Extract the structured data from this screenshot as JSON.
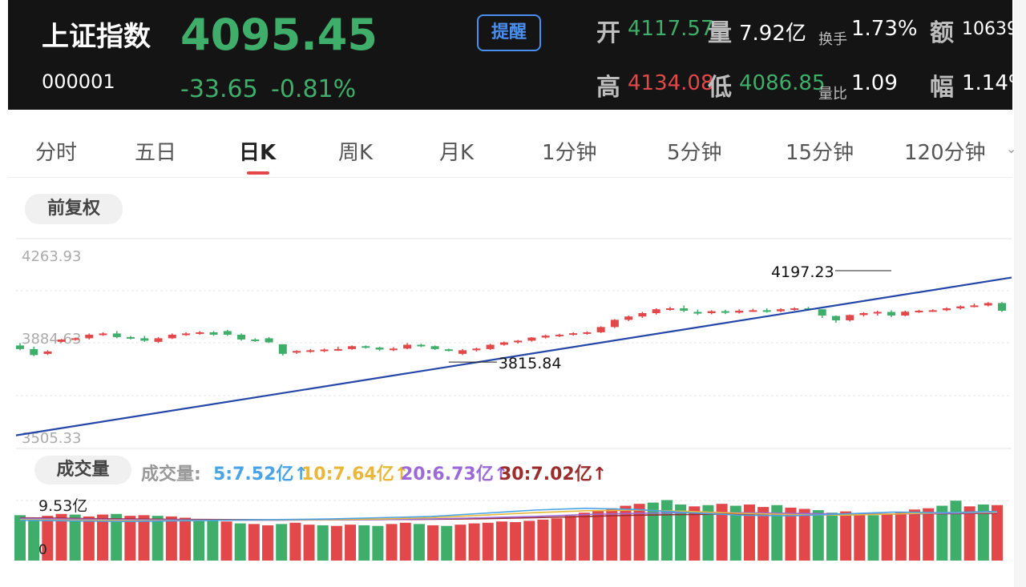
{
  "header": {
    "name": "上证指数",
    "code": "000001",
    "price": "4095.45",
    "change": "-33.65",
    "change_pct": "-0.81%",
    "alert_label": "提醒",
    "open_label": "开",
    "open": "4117.57",
    "volume_label": "量",
    "volume": "7.92亿",
    "turnover_label": "换手",
    "turnover": "1.73%",
    "amount_label": "额",
    "amount": "10639",
    "high_label": "高",
    "high": "4134.08",
    "low_label": "低",
    "low": "4086.85",
    "volratio_label": "量比",
    "volratio": "1.09",
    "amplitude_label": "幅",
    "amplitude": "1.14%"
  },
  "tabs": [
    "分时",
    "五日",
    "日K",
    "周K",
    "月K",
    "1分钟",
    "5分钟",
    "15分钟",
    "120分钟"
  ],
  "active_tab": "日K",
  "adjust_label": "前复权",
  "volume_section": {
    "button": "成交量",
    "legend_title": "成交量:",
    "ma5": "5:7.52亿↑",
    "ma10": "10:7.64亿↑",
    "ma20": "20:6.73亿↑",
    "ma30": "30:7.02亿↑",
    "max_label": "9.53亿",
    "min_label": "0"
  },
  "colors": {
    "up": "#e2474a",
    "down": "#3fae6a",
    "trend": "#2446a8",
    "ma5": "#4aa3e6",
    "ma10": "#e9b83a",
    "ma20": "#9b6ad8",
    "ma30": "#9b2d2d"
  },
  "chart_data": {
    "type": "candlestick",
    "y_labels": [
      "4263.93",
      "3884.63",
      "3505.33"
    ],
    "ylim": [
      3505.33,
      4263.93
    ],
    "annotations": [
      {
        "label": "4197.23",
        "value": 4197.23,
        "index": 63
      },
      {
        "label": "3815.84",
        "value": 3815.84,
        "index": 31
      }
    ],
    "trendline": {
      "from": {
        "index": 0,
        "value": 3510
      },
      "to": {
        "index": 72,
        "value": 4135
      }
    },
    "candles": [
      [
        3885,
        3870,
        3895,
        3865
      ],
      [
        3870,
        3845,
        3880,
        3840
      ],
      [
        3850,
        3860,
        3865,
        3845
      ],
      [
        3900,
        3910,
        3912,
        3898
      ],
      [
        3910,
        3915,
        3918,
        3905
      ],
      [
        3915,
        3930,
        3935,
        3910
      ],
      [
        3930,
        3935,
        3940,
        3925
      ],
      [
        3935,
        3920,
        3945,
        3915
      ],
      [
        3920,
        3915,
        3925,
        3910
      ],
      [
        3915,
        3905,
        3925,
        3900
      ],
      [
        3900,
        3915,
        3920,
        3895
      ],
      [
        3915,
        3930,
        3935,
        3912
      ],
      [
        3930,
        3935,
        3940,
        3925
      ],
      [
        3935,
        3940,
        3945,
        3930
      ],
      [
        3940,
        3930,
        3945,
        3925
      ],
      [
        3945,
        3930,
        3950,
        3925
      ],
      [
        3930,
        3910,
        3935,
        3905
      ],
      [
        3910,
        3905,
        3915,
        3900
      ],
      [
        3915,
        3898,
        3920,
        3895
      ],
      [
        3890,
        3850,
        3890,
        3843
      ],
      [
        3855,
        3862,
        3865,
        3850
      ],
      [
        3860,
        3865,
        3870,
        3855
      ],
      [
        3862,
        3868,
        3872,
        3857
      ],
      [
        3865,
        3870,
        3880,
        3862
      ],
      [
        3870,
        3882,
        3885,
        3867
      ],
      [
        3882,
        3878,
        3885,
        3872
      ],
      [
        3876,
        3868,
        3880,
        3862
      ],
      [
        3866,
        3872,
        3878,
        3862
      ],
      [
        3872,
        3888,
        3895,
        3869
      ],
      [
        3888,
        3882,
        3892,
        3878
      ],
      [
        3882,
        3870,
        3885,
        3866
      ],
      [
        3869,
        3866,
        3872,
        3860
      ],
      [
        3850,
        3865,
        3870,
        3845
      ],
      [
        3865,
        3872,
        3876,
        3860
      ],
      [
        3870,
        3888,
        3892,
        3866
      ],
      [
        3888,
        3898,
        3902,
        3884
      ],
      [
        3898,
        3905,
        3908,
        3893
      ],
      [
        3905,
        3918,
        3920,
        3901
      ],
      [
        3918,
        3926,
        3930,
        3914
      ],
      [
        3926,
        3930,
        3934,
        3920
      ],
      [
        3930,
        3936,
        3940,
        3926
      ],
      [
        3936,
        3940,
        3944,
        3930
      ],
      [
        3940,
        3962,
        3965,
        3937
      ],
      [
        3962,
        3992,
        3995,
        3958
      ],
      [
        3992,
        4006,
        4010,
        3987
      ],
      [
        4006,
        4020,
        4025,
        4000
      ],
      [
        4020,
        4036,
        4040,
        4014
      ],
      [
        4036,
        4040,
        4046,
        4030
      ],
      [
        4040,
        4030,
        4052,
        4024
      ],
      [
        4025,
        4018,
        4035,
        4012
      ],
      [
        4020,
        4028,
        4032,
        4015
      ],
      [
        4028,
        4022,
        4034,
        4016
      ],
      [
        4022,
        4030,
        4036,
        4018
      ],
      [
        4030,
        4032,
        4038,
        4026
      ],
      [
        4032,
        4028,
        4040,
        4022
      ],
      [
        4028,
        4036,
        4040,
        4024
      ],
      [
        4036,
        4040,
        4044,
        4030
      ],
      [
        4040,
        4036,
        4046,
        4030
      ],
      [
        4036,
        4010,
        4036,
        4000
      ],
      [
        4008,
        3990,
        4010,
        3980
      ],
      [
        3990,
        4012,
        4014,
        3985
      ],
      [
        4012,
        4020,
        4024,
        4006
      ],
      [
        4020,
        4025,
        4030,
        4010
      ],
      [
        4025,
        4010,
        4032,
        4003
      ],
      [
        4010,
        4026,
        4030,
        4007
      ],
      [
        4026,
        4030,
        4034,
        4021
      ],
      [
        4030,
        4032,
        4036,
        4025
      ],
      [
        4032,
        4040,
        4044,
        4028
      ],
      [
        4040,
        4048,
        4052,
        4035
      ],
      [
        4048,
        4052,
        4060,
        4044
      ],
      [
        4052,
        4062,
        4066,
        4048
      ],
      [
        4062,
        4030,
        4066,
        4025
      ]
    ],
    "volumes": [
      [
        7.2,
        "down"
      ],
      [
        6.8,
        "down"
      ],
      [
        7.1,
        "up"
      ],
      [
        7.4,
        "up"
      ],
      [
        7.3,
        "down"
      ],
      [
        7.0,
        "up"
      ],
      [
        7.3,
        "up"
      ],
      [
        7.4,
        "down"
      ],
      [
        7.1,
        "up"
      ],
      [
        7.2,
        "up"
      ],
      [
        7.1,
        "down"
      ],
      [
        7.0,
        "up"
      ],
      [
        6.8,
        "up"
      ],
      [
        6.6,
        "down"
      ],
      [
        6.5,
        "down"
      ],
      [
        6.2,
        "up"
      ],
      [
        5.9,
        "down"
      ],
      [
        5.8,
        "up"
      ],
      [
        5.6,
        "up"
      ],
      [
        5.8,
        "down"
      ],
      [
        6.0,
        "up"
      ],
      [
        5.7,
        "up"
      ],
      [
        5.6,
        "down"
      ],
      [
        5.5,
        "up"
      ],
      [
        5.7,
        "up"
      ],
      [
        5.6,
        "down"
      ],
      [
        5.5,
        "down"
      ],
      [
        5.8,
        "up"
      ],
      [
        6.0,
        "up"
      ],
      [
        5.8,
        "down"
      ],
      [
        5.6,
        "up"
      ],
      [
        5.5,
        "down"
      ],
      [
        5.7,
        "up"
      ],
      [
        5.9,
        "up"
      ],
      [
        6.0,
        "up"
      ],
      [
        6.2,
        "up"
      ],
      [
        6.1,
        "up"
      ],
      [
        6.3,
        "up"
      ],
      [
        6.5,
        "up"
      ],
      [
        6.7,
        "up"
      ],
      [
        7.1,
        "up"
      ],
      [
        7.6,
        "up"
      ],
      [
        7.9,
        "up"
      ],
      [
        8.3,
        "up"
      ],
      [
        8.7,
        "up"
      ],
      [
        9.0,
        "up"
      ],
      [
        9.2,
        "down"
      ],
      [
        9.6,
        "down"
      ],
      [
        8.9,
        "down"
      ],
      [
        8.6,
        "up"
      ],
      [
        8.8,
        "down"
      ],
      [
        9.0,
        "up"
      ],
      [
        8.7,
        "down"
      ],
      [
        8.9,
        "up"
      ],
      [
        8.5,
        "up"
      ],
      [
        8.8,
        "down"
      ],
      [
        8.4,
        "up"
      ],
      [
        8.2,
        "up"
      ],
      [
        8.0,
        "down"
      ],
      [
        7.6,
        "down"
      ],
      [
        7.8,
        "up"
      ],
      [
        7.4,
        "up"
      ],
      [
        7.2,
        "down"
      ],
      [
        7.5,
        "up"
      ],
      [
        7.7,
        "up"
      ],
      [
        8.1,
        "up"
      ],
      [
        8.3,
        "up"
      ],
      [
        8.7,
        "down"
      ],
      [
        9.5,
        "down"
      ],
      [
        8.6,
        "up"
      ],
      [
        8.9,
        "down"
      ],
      [
        8.8,
        "up"
      ]
    ],
    "ma_lines": {
      "ma5": [
        6.4,
        6.3,
        6.2,
        6.3,
        6.4,
        6.5,
        6.6,
        6.8,
        7.0,
        7.5,
        8.0,
        8.3,
        8.1,
        7.6,
        7.2,
        7.1,
        7.4,
        7.7,
        7.6,
        7.8
      ],
      "ma10": [
        6.5,
        6.4,
        6.35,
        6.35,
        6.4,
        6.45,
        6.5,
        6.6,
        6.8,
        7.2,
        7.6,
        7.9,
        8.0,
        7.8,
        7.5,
        7.3,
        7.2,
        7.4,
        7.6,
        7.7
      ],
      "ma20": [
        6.7,
        6.6,
        6.5,
        6.45,
        6.4,
        6.4,
        6.45,
        6.5,
        6.6,
        6.8,
        7.0,
        7.3,
        7.5,
        7.6,
        7.6,
        7.5,
        7.4,
        7.4,
        7.5,
        7.6
      ],
      "ma30": [
        6.8,
        6.7,
        6.6,
        6.55,
        6.5,
        6.48,
        6.48,
        6.5,
        6.55,
        6.65,
        6.8,
        7.0,
        7.2,
        7.3,
        7.4,
        7.4,
        7.4,
        7.4,
        7.45,
        7.5
      ]
    }
  }
}
